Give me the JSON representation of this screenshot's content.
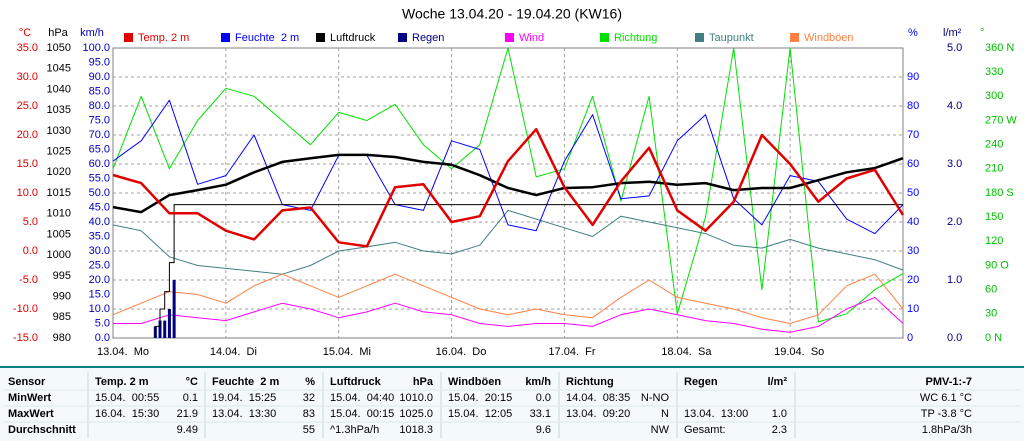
{
  "chart_data": {
    "type": "line",
    "title": "Woche 13.04.20 - 19.04.20 (KW16)",
    "x": [
      0,
      6,
      12,
      18,
      24,
      30,
      36,
      42,
      48,
      54,
      60,
      66,
      72,
      78,
      84,
      90,
      96,
      102,
      108,
      114,
      120,
      126,
      132,
      138,
      144,
      150,
      156,
      162,
      168
    ],
    "xlim": [
      0,
      168
    ],
    "xticks": [
      {
        "value": 0,
        "label": "13.04.  Mo"
      },
      {
        "value": 24,
        "label": "14.04.  Di"
      },
      {
        "value": 48,
        "label": "15.04.  Mi"
      },
      {
        "value": 72,
        "label": "16.04.  Do"
      },
      {
        "value": 96,
        "label": "17.04.  Fr"
      },
      {
        "value": 120,
        "label": "18.04.  Sa"
      },
      {
        "value": 144,
        "label": "19.04.  So"
      }
    ],
    "grid": true,
    "axes": {
      "temp": {
        "label": "°C",
        "color": "#e00000",
        "lim": [
          -15,
          35
        ],
        "ticks": [
          {
            "value": 35,
            "label": "35.0"
          },
          {
            "value": 30,
            "label": "30.0"
          },
          {
            "value": 25,
            "label": "25.0"
          },
          {
            "value": 20,
            "label": "20.0"
          },
          {
            "value": 15,
            "label": "15.0"
          },
          {
            "value": 10,
            "label": "10.0"
          },
          {
            "value": 5,
            "label": "5.0"
          },
          {
            "value": 0,
            "label": "0.0"
          },
          {
            "value": -5,
            "label": "-5.0"
          },
          {
            "value": -10,
            "label": "-10.0"
          },
          {
            "value": -15,
            "label": "-15.0"
          }
        ]
      },
      "hpa": {
        "label": "hPa",
        "color": "#000000",
        "lim": [
          980,
          1050
        ],
        "ticks": [
          1050,
          1045,
          1040,
          1035,
          1030,
          1025,
          1020,
          1015,
          1010,
          1005,
          1000,
          995,
          990,
          985,
          980
        ]
      },
      "kmh": {
        "label": "km/h",
        "color": "#0000c0",
        "lim": [
          0,
          100
        ],
        "ticks": [
          {
            "value": 100,
            "label": "100.0"
          },
          {
            "value": 95,
            "label": "95.0"
          },
          {
            "value": 90,
            "label": "90.0"
          },
          {
            "value": 85,
            "label": "85.0"
          },
          {
            "value": 80,
            "label": "80.0"
          },
          {
            "value": 75,
            "label": "75.0"
          },
          {
            "value": 70,
            "label": "70.0"
          },
          {
            "value": 65,
            "label": "65.0"
          },
          {
            "value": 60,
            "label": "60.0"
          },
          {
            "value": 55,
            "label": "55.0"
          },
          {
            "value": 50,
            "label": "50.0"
          },
          {
            "value": 45,
            "label": "45.0"
          },
          {
            "value": 40,
            "label": "40.0"
          },
          {
            "value": 35,
            "label": "35.0"
          },
          {
            "value": 30,
            "label": "30.0"
          },
          {
            "value": 25,
            "label": "25.0"
          },
          {
            "value": 20,
            "label": "20.0"
          },
          {
            "value": 15,
            "label": "15.0"
          },
          {
            "value": 10,
            "label": "10.0"
          },
          {
            "value": 5,
            "label": "5.0"
          },
          {
            "value": 0,
            "label": "0.0"
          }
        ]
      },
      "pct": {
        "label": "%",
        "color": "#0000ff",
        "lim": [
          0,
          100
        ],
        "ticks": [
          90,
          80,
          70,
          60,
          50,
          40,
          30,
          20,
          10,
          0
        ]
      },
      "rain": {
        "label": "l/m²",
        "color": "#000080",
        "lim": [
          0,
          5
        ],
        "ticks": [
          {
            "value": 5,
            "label": "5.0"
          },
          {
            "value": 4,
            "label": "4.0"
          },
          {
            "value": 3,
            "label": "3.0"
          },
          {
            "value": 2,
            "label": "2.0"
          },
          {
            "value": 1,
            "label": "1.0"
          },
          {
            "value": 0,
            "label": "0.0"
          }
        ]
      },
      "deg": {
        "label": "°",
        "color": "#00c000",
        "lim": [
          0,
          360
        ],
        "ticks": [
          {
            "value": 360,
            "label": "360 N"
          },
          330,
          300,
          {
            "value": 270,
            "label": "270 W"
          },
          240,
          210,
          {
            "value": 180,
            "label": "180 S"
          },
          150,
          120,
          {
            "value": 90,
            "label": "90 O"
          },
          60,
          30,
          {
            "value": 0,
            "label": "0 N"
          }
        ]
      }
    },
    "series": [
      {
        "name": "Temp. 2 m",
        "color": "#e00000",
        "axis": "temp",
        "values": [
          13.1,
          11.7,
          6.5,
          6.5,
          3.5,
          2.0,
          7.0,
          7.5,
          1.5,
          0.8,
          11,
          11.5,
          5.0,
          6.0,
          15.5,
          21,
          11,
          4.5,
          12,
          17.8,
          7,
          3.5,
          8.5,
          20,
          15,
          8.5,
          12.5,
          14,
          6.2
        ]
      },
      {
        "name": "Feuchte  2 m",
        "color": "#0000ff",
        "axis": "pct",
        "values": [
          61,
          68,
          82,
          53,
          56,
          70,
          46,
          44,
          63,
          63,
          46,
          44,
          68,
          65,
          39,
          37,
          61,
          77,
          48,
          49,
          68,
          77,
          48,
          39,
          56,
          54,
          41,
          36,
          46
        ]
      },
      {
        "name": "Luftdruck",
        "color": "#000000",
        "axis": "hpa",
        "values": [
          1011.6,
          1010.4,
          1014.5,
          1015.7,
          1017,
          1020,
          1022.5,
          1023.4,
          1024.2,
          1024.2,
          1023.7,
          1022.5,
          1021.8,
          1019.3,
          1016.2,
          1014.5,
          1016.2,
          1016.4,
          1017.4,
          1017.7,
          1017,
          1017.4,
          1015.7,
          1016.2,
          1016.2,
          1018.1,
          1020,
          1021,
          1023.4
        ]
      },
      {
        "name": "Regen",
        "color": "#000080",
        "axis": "rain",
        "type": "bar",
        "x": [
          9,
          10,
          11,
          12,
          13
        ],
        "values": [
          0.2,
          0.3,
          0.3,
          0.5,
          1.0
        ]
      },
      {
        "name": "Wind",
        "color": "#ff00ff",
        "axis": "kmh",
        "values": [
          5,
          5,
          8,
          7,
          6,
          9,
          12,
          10,
          7,
          9,
          12,
          9,
          8,
          5,
          4,
          5,
          5,
          4,
          8,
          10,
          8,
          6,
          5,
          3,
          2,
          4,
          10,
          14,
          5
        ]
      },
      {
        "name": "Richtung",
        "color": "#00e000",
        "axis": "deg",
        "values": [
          210,
          300,
          210,
          270,
          310,
          300,
          270,
          240,
          280,
          270,
          290,
          240,
          210,
          240,
          360,
          200,
          210,
          300,
          170,
          300,
          30,
          150,
          360,
          60,
          360,
          20,
          30,
          60,
          80
        ]
      },
      {
        "name": "Taupunkt",
        "color": "#408080",
        "axis": "temp",
        "values": [
          4.5,
          3.5,
          -1,
          -2.5,
          -3,
          -3.5,
          -4,
          -2.5,
          0,
          0.7,
          1.5,
          0,
          -0.5,
          1,
          7,
          5.5,
          4,
          2.5,
          6,
          5,
          4,
          3,
          1,
          0.5,
          2,
          0.5,
          -0.5,
          -1.5,
          -3.3
        ]
      },
      {
        "name": "Windböen",
        "color": "#ff8040",
        "axis": "kmh",
        "values": [
          8,
          12,
          16,
          15,
          12,
          18,
          22,
          18,
          14,
          18,
          22,
          18,
          14,
          10,
          8,
          10,
          8,
          7,
          14,
          20,
          14,
          12,
          10,
          7,
          5,
          8,
          18,
          22,
          10
        ]
      }
    ]
  },
  "table": {
    "row_labels": [
      "Sensor",
      "MinWert",
      "MaxWert",
      "Durchschnitt"
    ],
    "columns": [
      {
        "header": "Temp. 2 m",
        "unit": "°C",
        "cells": [
          [
            "15.04.  00:55",
            "0.1"
          ],
          [
            "16.04.  15:30",
            "21.9"
          ],
          [
            null,
            "9.49"
          ]
        ]
      },
      {
        "header": "Feuchte  2 m",
        "unit": "%",
        "cells": [
          [
            "19.04.  15:25",
            "32"
          ],
          [
            "13.04.  13:30",
            "83"
          ],
          [
            null,
            "55"
          ]
        ]
      },
      {
        "header": "Luftdruck",
        "unit": "hPa",
        "cells": [
          [
            "15.04.  04:40",
            "1010.0"
          ],
          [
            "15.04.  00:15",
            "1025.0"
          ],
          [
            "^1.3hPa/h",
            "1018.3"
          ]
        ]
      },
      {
        "header": "Windböen",
        "unit": "km/h",
        "cells": [
          [
            "15.04.  20:15",
            "0.0"
          ],
          [
            "15.04.  12:05",
            "33.1"
          ],
          [
            null,
            "9.6"
          ]
        ]
      },
      {
        "header": "Richtung",
        "unit": null,
        "cells": [
          [
            "14.04.  08:35",
            "N-NO"
          ],
          [
            "13.04.  09:20",
            "N"
          ],
          [
            null,
            "NW"
          ]
        ]
      },
      {
        "header": "Regen",
        "unit": "l/m²",
        "cells": [
          [
            null,
            null
          ],
          [
            "13.04.  13:00",
            "1.0"
          ],
          [
            "Gesamt:",
            "2.3"
          ]
        ]
      }
    ],
    "pmv": {
      "title": "PMV-1:-7",
      "lines": [
        "WC 6.1 °C",
        "TP -3.8 °C",
        "1.8hPa/3h"
      ]
    }
  }
}
